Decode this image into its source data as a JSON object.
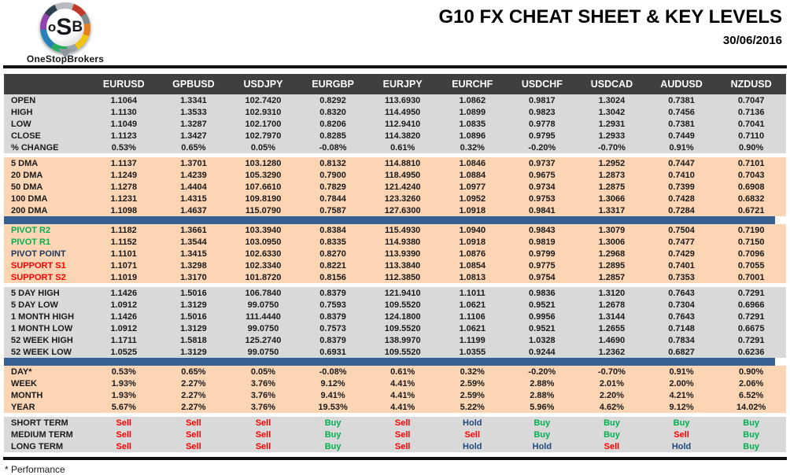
{
  "page": {
    "title": "G10 FX CHEAT SHEET & KEY LEVELS",
    "date": "30/06/2016",
    "footnote": "* Performance"
  },
  "logo": {
    "letter_o": "o",
    "letter_s": "S",
    "letter_b": "B",
    "brand": "OneStopBrokers"
  },
  "colors": {
    "header_bg": "#3f3f3f",
    "gray_block": "#d9d9d9",
    "peach_block": "#fcd5b4",
    "blue_bar": "#376092",
    "buy_green": "#00b050",
    "sell_red": "#ff0000",
    "hold_navy": "#1f497d",
    "pivot_navy": "#17375e"
  },
  "table": {
    "columns": [
      "EURUSD",
      "GPBUSD",
      "USDJPY",
      "EURGBP",
      "EURJPY",
      "EURCHF",
      "USDCHF",
      "USDCAD",
      "AUDUSD",
      "NZDUSD"
    ],
    "blocks": [
      {
        "name": "ohlc",
        "style": "gray",
        "after": "gap",
        "rows": [
          {
            "label": "OPEN",
            "values": [
              "1.1064",
              "1.3341",
              "102.7420",
              "0.8292",
              "113.6930",
              "1.0862",
              "0.9817",
              "1.3024",
              "0.7381",
              "0.7047"
            ]
          },
          {
            "label": "HIGH",
            "values": [
              "1.1130",
              "1.3533",
              "102.9310",
              "0.8320",
              "114.4950",
              "1.0899",
              "0.9823",
              "1.3042",
              "0.7456",
              "0.7136"
            ]
          },
          {
            "label": "LOW",
            "values": [
              "1.1049",
              "1.3287",
              "102.1700",
              "0.8206",
              "112.9410",
              "1.0835",
              "0.9778",
              "1.2931",
              "0.7381",
              "0.7041"
            ]
          },
          {
            "label": "CLOSE",
            "values": [
              "1.1123",
              "1.3427",
              "102.7970",
              "0.8285",
              "114.3820",
              "1.0896",
              "0.9795",
              "1.2933",
              "0.7449",
              "0.7110"
            ]
          },
          {
            "label": "% CHANGE",
            "values": [
              "0.53%",
              "0.65%",
              "0.05%",
              "-0.08%",
              "0.61%",
              "0.32%",
              "-0.20%",
              "-0.70%",
              "0.91%",
              "0.90%"
            ]
          }
        ]
      },
      {
        "name": "dma",
        "style": "peach",
        "after": "blue",
        "rows": [
          {
            "label": "5 DMA",
            "values": [
              "1.1137",
              "1.3701",
              "103.1280",
              "0.8132",
              "114.8810",
              "1.0846",
              "0.9737",
              "1.2952",
              "0.7447",
              "0.7101"
            ]
          },
          {
            "label": "20 DMA",
            "values": [
              "1.1249",
              "1.4239",
              "105.3290",
              "0.7900",
              "118.4950",
              "1.0884",
              "0.9675",
              "1.2873",
              "0.7410",
              "0.7043"
            ]
          },
          {
            "label": "50 DMA",
            "values": [
              "1.1278",
              "1.4404",
              "107.6610",
              "0.7829",
              "121.4240",
              "1.0977",
              "0.9734",
              "1.2875",
              "0.7399",
              "0.6908"
            ]
          },
          {
            "label": "100 DMA",
            "values": [
              "1.1231",
              "1.4315",
              "109.8190",
              "0.7844",
              "123.3260",
              "1.0952",
              "0.9753",
              "1.3066",
              "0.7428",
              "0.6832"
            ]
          },
          {
            "label": "200 DMA",
            "values": [
              "1.1098",
              "1.4637",
              "115.0790",
              "0.7587",
              "127.6300",
              "1.0918",
              "0.9841",
              "1.3317",
              "0.7284",
              "0.6721"
            ]
          }
        ]
      },
      {
        "name": "pivots",
        "style": "peach",
        "after": "gap",
        "rows": [
          {
            "label": "PIVOT R2",
            "label_class": "green",
            "values": [
              "1.1182",
              "1.3661",
              "103.3940",
              "0.8384",
              "115.4930",
              "1.0940",
              "0.9843",
              "1.3079",
              "0.7504",
              "0.7190"
            ]
          },
          {
            "label": "PIVOT R1",
            "label_class": "green",
            "values": [
              "1.1152",
              "1.3544",
              "103.0950",
              "0.8335",
              "114.9380",
              "1.0918",
              "0.9819",
              "1.3006",
              "0.7477",
              "0.7150"
            ]
          },
          {
            "label": "PIVOT POINT",
            "label_class": "navy",
            "values": [
              "1.1101",
              "1.3415",
              "102.6330",
              "0.8270",
              "113.9390",
              "1.0876",
              "0.9799",
              "1.2968",
              "0.7429",
              "0.7096"
            ]
          },
          {
            "label": "SUPPORT S1",
            "label_class": "red",
            "values": [
              "1.1071",
              "1.3298",
              "102.3340",
              "0.8221",
              "113.3840",
              "1.0854",
              "0.9775",
              "1.2895",
              "0.7401",
              "0.7055"
            ]
          },
          {
            "label": "SUPPORT S2",
            "label_class": "red",
            "values": [
              "1.1019",
              "1.3170",
              "101.8720",
              "0.8156",
              "112.3850",
              "1.0813",
              "0.9754",
              "1.2857",
              "0.7353",
              "0.7001"
            ]
          }
        ]
      },
      {
        "name": "ranges",
        "style": "gray",
        "after": "blue",
        "rows": [
          {
            "label": "5 DAY HIGH",
            "values": [
              "1.1426",
              "1.5016",
              "106.7840",
              "0.8379",
              "121.9410",
              "1.1011",
              "0.9836",
              "1.3120",
              "0.7643",
              "0.7291"
            ]
          },
          {
            "label": "5 DAY LOW",
            "values": [
              "1.0912",
              "1.3129",
              "99.0750",
              "0.7593",
              "109.5520",
              "1.0621",
              "0.9521",
              "1.2678",
              "0.7304",
              "0.6966"
            ]
          },
          {
            "label": "1 MONTH HIGH",
            "values": [
              "1.1426",
              "1.5016",
              "111.4440",
              "0.8379",
              "124.1800",
              "1.1106",
              "0.9956",
              "1.3144",
              "0.7643",
              "0.7291"
            ]
          },
          {
            "label": "1 MONTH LOW",
            "values": [
              "1.0912",
              "1.3129",
              "99.0750",
              "0.7573",
              "109.5520",
              "1.0621",
              "0.9521",
              "1.2655",
              "0.7148",
              "0.6675"
            ]
          },
          {
            "label": "52 WEEK HIGH",
            "values": [
              "1.1711",
              "1.5818",
              "125.2740",
              "0.8379",
              "138.9970",
              "1.1199",
              "1.0328",
              "1.4690",
              "0.7834",
              "0.7291"
            ]
          },
          {
            "label": "52 WEEK LOW",
            "values": [
              "1.0525",
              "1.3129",
              "99.0750",
              "0.6931",
              "109.5520",
              "1.0355",
              "0.9244",
              "1.2362",
              "0.6827",
              "0.6236"
            ]
          }
        ]
      },
      {
        "name": "performance",
        "style": "peach",
        "after": "gap",
        "rows": [
          {
            "label": "DAY*",
            "values": [
              "0.53%",
              "0.65%",
              "0.05%",
              "-0.08%",
              "0.61%",
              "0.32%",
              "-0.20%",
              "-0.70%",
              "0.91%",
              "0.90%"
            ]
          },
          {
            "label": "WEEK",
            "values": [
              "1.93%",
              "2.27%",
              "3.76%",
              "9.12%",
              "4.41%",
              "2.59%",
              "2.88%",
              "2.01%",
              "2.00%",
              "2.06%"
            ]
          },
          {
            "label": "MONTH",
            "values": [
              "1.93%",
              "2.27%",
              "3.76%",
              "9.41%",
              "4.41%",
              "2.59%",
              "2.88%",
              "2.20%",
              "4.21%",
              "6.52%"
            ]
          },
          {
            "label": "YEAR",
            "values": [
              "5.67%",
              "2.27%",
              "3.76%",
              "19.53%",
              "4.41%",
              "5.22%",
              "5.96%",
              "4.62%",
              "9.12%",
              "14.02%"
            ]
          }
        ]
      },
      {
        "name": "signals",
        "style": "gray",
        "after": "none",
        "rows": [
          {
            "label": "SHORT TERM",
            "values": [
              "Sell",
              "Sell",
              "Sell",
              "Buy",
              "Sell",
              "Hold",
              "Buy",
              "Buy",
              "Buy",
              "Buy"
            ]
          },
          {
            "label": "MEDIUM TERM",
            "values": [
              "Sell",
              "Sell",
              "Sell",
              "Buy",
              "Sell",
              "Sell",
              "Buy",
              "Buy",
              "Sell",
              "Buy"
            ]
          },
          {
            "label": "LONG TERM",
            "values": [
              "Sell",
              "Sell",
              "Sell",
              "Buy",
              "Sell",
              "Hold",
              "Hold",
              "Sell",
              "Hold",
              "Buy"
            ]
          }
        ]
      }
    ]
  }
}
